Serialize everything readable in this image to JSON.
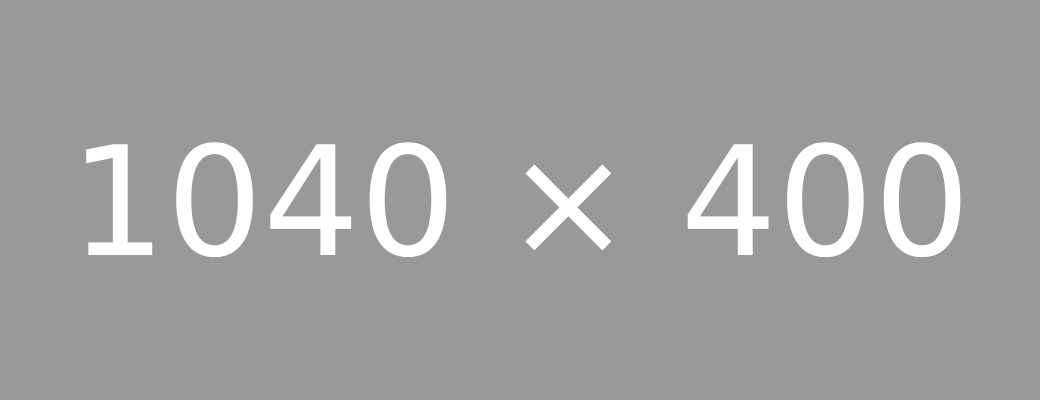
{
  "placeholder": {
    "label": "1040 × 400",
    "background_color": "#999999",
    "text_color": "#ffffff"
  }
}
